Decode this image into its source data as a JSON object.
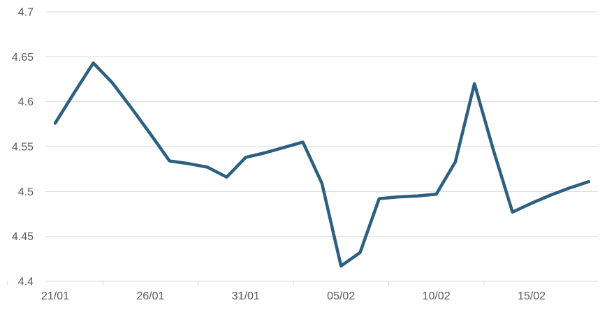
{
  "chart_data": {
    "type": "line",
    "title": "",
    "xlabel": "",
    "ylabel": "",
    "n_points": 29,
    "values": [
      4.576,
      4.61,
      4.643,
      4.621,
      4.593,
      4.564,
      4.534,
      4.531,
      4.527,
      4.516,
      4.538,
      4.543,
      4.549,
      4.555,
      4.509,
      4.417,
      4.432,
      4.492,
      4.494,
      4.495,
      4.497,
      4.533,
      4.62,
      4.546,
      4.477,
      4.487,
      4.496,
      4.504,
      4.511
    ],
    "x_tick_labels": [
      "21/01",
      "26/01",
      "31/01",
      "05/02",
      "10/02",
      "15/02"
    ],
    "points_per_x_tick": 5,
    "y_ticks": [
      4.4,
      4.45,
      4.5,
      4.55,
      4.6,
      4.65,
      4.7
    ],
    "y_tick_labels": [
      "4.4",
      "4.45",
      "4.5",
      "4.55",
      "4.6",
      "4.65",
      "4.7"
    ],
    "ylim": [
      4.4,
      4.7
    ],
    "grid": true,
    "legend": false,
    "line_color": "#2D5F80",
    "grid_color": "#D9D9D9",
    "tick_color": "#D9D9D9",
    "label_color": "#595959",
    "background_color": "#FFFFFF"
  }
}
